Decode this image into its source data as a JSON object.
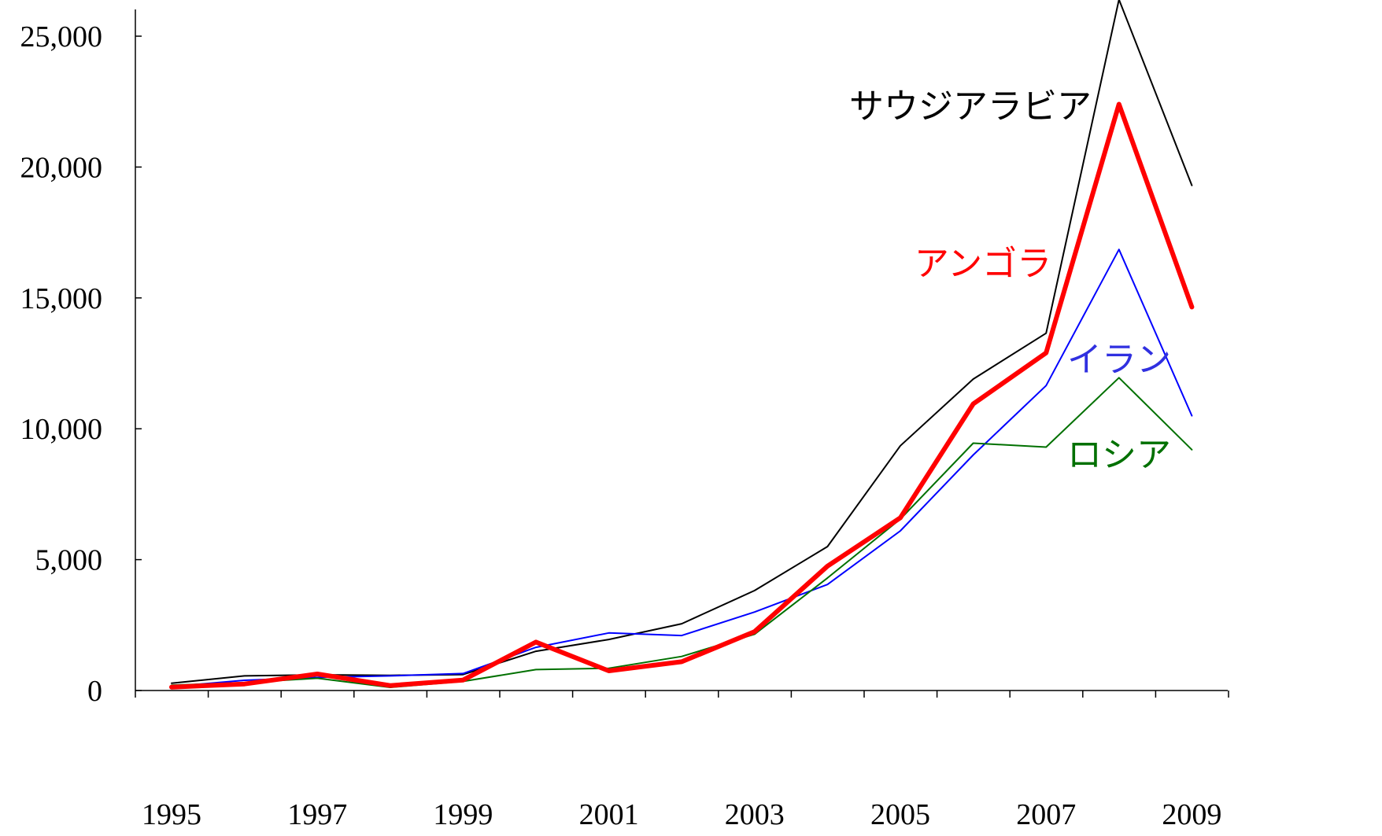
{
  "chart_data": {
    "type": "line",
    "title": "",
    "xlabel": "",
    "ylabel": "",
    "x": [
      1995,
      1996,
      1997,
      1998,
      1999,
      2000,
      2001,
      2002,
      2003,
      2004,
      2005,
      2006,
      2007,
      2008,
      2009
    ],
    "x_ticks": [
      "1995",
      "1997",
      "1999",
      "2001",
      "2003",
      "2005",
      "2007",
      "2009"
    ],
    "y_ticks": [
      "0",
      "5,000",
      "10,000",
      "15,000",
      "20,000",
      "25,000"
    ],
    "ylim": [
      0,
      26500
    ],
    "grid": false,
    "series": [
      {
        "name": "サウジアラビア",
        "color": "#000000",
        "width": 2,
        "values": [
          280,
          560,
          600,
          580,
          610,
          1500,
          1950,
          2550,
          3820,
          5500,
          9350,
          11900,
          13650,
          26400,
          19300
        ]
      },
      {
        "name": "アンゴラ",
        "color": "#ff0000",
        "width": 6,
        "values": [
          130,
          250,
          630,
          190,
          400,
          1850,
          750,
          1100,
          2250,
          4750,
          6600,
          10950,
          12900,
          22400,
          14650
        ]
      },
      {
        "name": "イラン",
        "color": "#0000ff",
        "width": 2,
        "values": [
          150,
          390,
          500,
          560,
          650,
          1650,
          2200,
          2100,
          3000,
          4050,
          6100,
          9000,
          11650,
          16850,
          10500
        ]
      },
      {
        "name": "ロシア",
        "color": "#007000",
        "width": 2,
        "values": [
          200,
          300,
          470,
          120,
          350,
          800,
          850,
          1300,
          2150,
          4300,
          6550,
          9450,
          9300,
          11950,
          9200
        ]
      }
    ]
  }
}
